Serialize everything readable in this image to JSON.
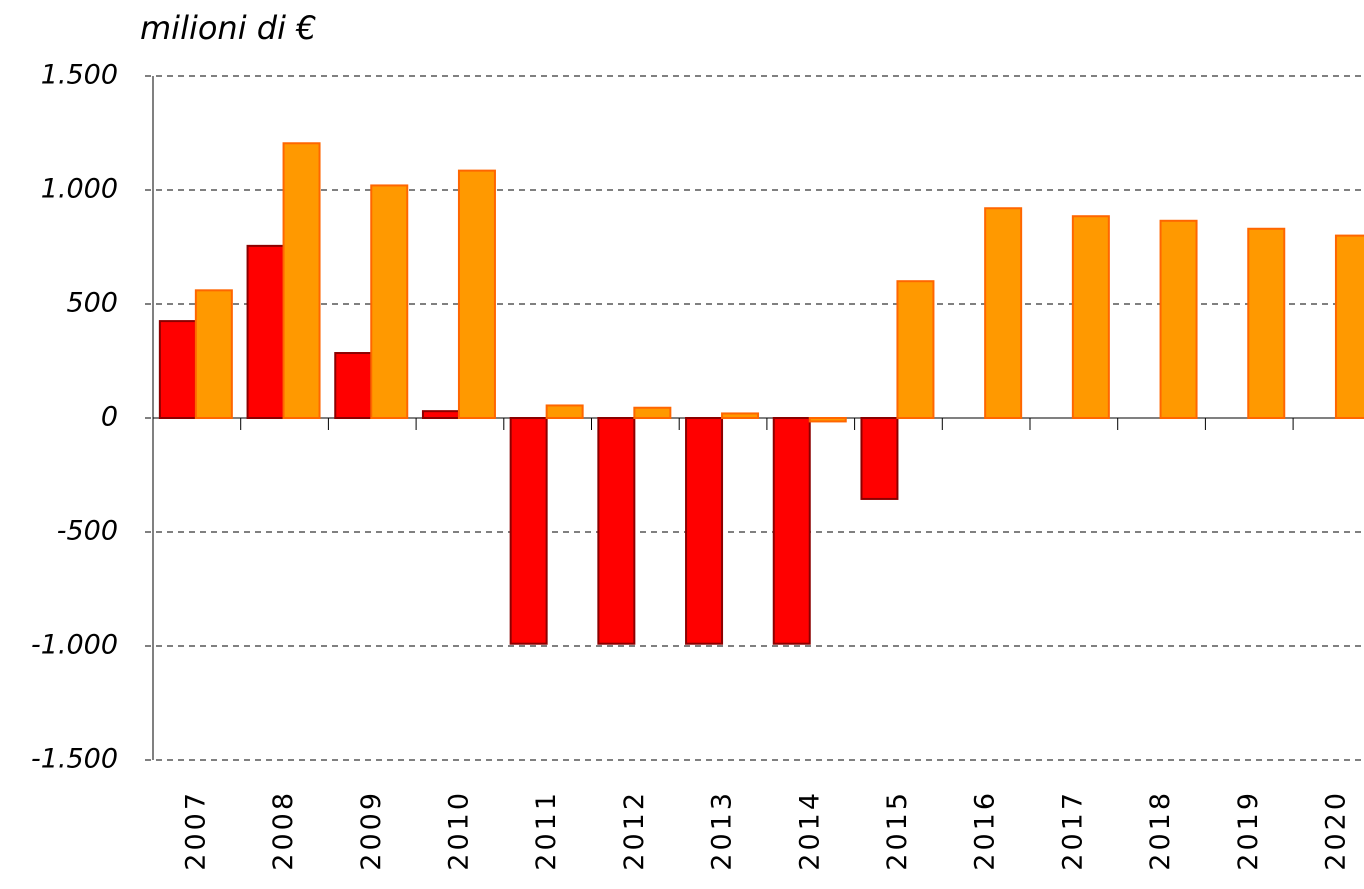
{
  "chart_data": {
    "type": "bar",
    "title": "milioni di €",
    "categories": [
      "2007",
      "2008",
      "2009",
      "2010",
      "2011",
      "2012",
      "2013",
      "2014",
      "2015",
      "2016",
      "2017",
      "2018",
      "2019",
      "2020"
    ],
    "series": [
      {
        "color": "#ff0000",
        "edge": "#8b0000",
        "values": [
          425,
          755,
          285,
          30,
          -990,
          -990,
          -990,
          -990,
          -355,
          null,
          null,
          null,
          null,
          null
        ]
      },
      {
        "color": "#ff9900",
        "edge": "#ff6600",
        "values": [
          560,
          1205,
          1020,
          1085,
          55,
          45,
          20,
          -15,
          600,
          920,
          885,
          865,
          830,
          800
        ]
      }
    ],
    "ylim": [
      -1500,
      1500
    ],
    "yticks": [
      {
        "value": 1500,
        "label": "1.500"
      },
      {
        "value": 1000,
        "label": "1.000"
      },
      500,
      0,
      -500,
      {
        "value": -1000,
        "label": "-1.000"
      },
      {
        "value": -1500,
        "label": "-1.500"
      }
    ],
    "grid": true
  }
}
